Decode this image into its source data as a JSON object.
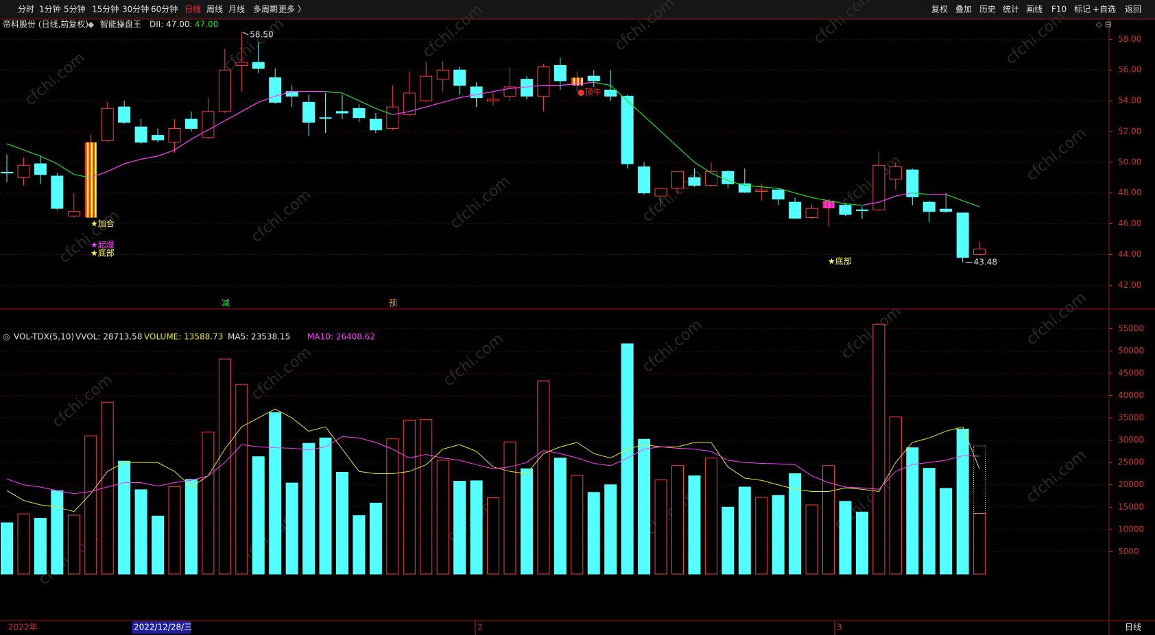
{
  "toolbar": {
    "left": [
      "分时",
      "1分钟",
      "5分钟",
      "15分钟",
      "30分钟",
      "60分钟",
      "日线",
      "周线",
      "月线",
      "多周期",
      "更多 〉"
    ],
    "right": [
      "复权",
      "叠加",
      "历史",
      "统计",
      "画线",
      "F10",
      "标记",
      "+自选",
      "返回"
    ]
  },
  "info": {
    "stock": "帝科股份 (日线,前复权)",
    "indicator": "智能操盘王",
    "dii": "DII: 47.00",
    "value": ": 47.00"
  },
  "volume_header": {
    "name": "VOL-TDX(5,10)",
    "vvol": "VVOL: 28713.58",
    "volume": "VOLUME: 13588.73",
    "ma5": "MA5: 23538.15",
    "ma10": "MA10: 26408.62"
  },
  "date_axis": {
    "labels": [
      "2022年",
      "2022/12/28/三",
      "2",
      "3"
    ],
    "period": "日线"
  },
  "watermark": "cfchi.com",
  "chart_data": [
    {
      "type": "candlestick",
      "up_color": "#ff3c3c",
      "down_color": "#54ffff",
      "open": [
        49.35,
        49.0,
        49.9,
        49.1,
        46.5,
        46.4,
        51.4,
        53.6,
        52.3,
        51.75,
        51.3,
        52.8,
        51.6,
        53.3,
        56.3,
        56.5,
        55.5,
        54.6,
        53.9,
        52.9,
        53.3,
        53.5,
        52.8,
        52.2,
        53.1,
        54.0,
        55.4,
        56.0,
        54.9,
        54.0,
        54.3,
        55.4,
        54.3,
        56.3,
        55.0,
        55.6,
        54.7,
        54.3,
        49.7,
        47.8,
        48.3,
        49.0,
        48.5,
        49.4,
        48.6,
        48.1,
        48.2,
        47.4,
        46.4,
        47.0,
        47.2,
        46.9,
        46.9,
        48.9,
        49.5,
        47.4,
        46.95,
        46.7,
        44.0
      ],
      "high": [
        50.5,
        50.3,
        50.4,
        49.3,
        48.0,
        51.8,
        53.9,
        54.0,
        52.8,
        52.2,
        52.8,
        53.3,
        54.2,
        57.4,
        58.5,
        57.8,
        56.1,
        55.0,
        54.4,
        54.5,
        54.4,
        53.8,
        53.2,
        55.0,
        55.9,
        56.5,
        56.6,
        56.2,
        55.2,
        54.5,
        56.2,
        55.6,
        56.4,
        56.8,
        55.9,
        56.0,
        56.0,
        54.4,
        50.0,
        48.3,
        49.4,
        49.6,
        50.0,
        49.5,
        49.6,
        48.6,
        48.3,
        47.7,
        47.3,
        47.6,
        47.3,
        47.1,
        50.7,
        50.0,
        49.6,
        47.5,
        48.0,
        46.7,
        44.8
      ],
      "low": [
        48.7,
        48.5,
        48.6,
        46.9,
        46.4,
        46.4,
        51.3,
        52.5,
        51.2,
        51.3,
        50.6,
        52.0,
        51.5,
        53.2,
        54.6,
        55.8,
        53.8,
        53.6,
        51.7,
        51.9,
        52.8,
        52.6,
        51.9,
        52.1,
        53.0,
        53.9,
        54.6,
        54.4,
        53.6,
        53.7,
        54.0,
        54.1,
        53.3,
        54.7,
        54.6,
        54.9,
        54.0,
        49.6,
        47.9,
        47.1,
        48.0,
        48.4,
        48.4,
        48.3,
        48.0,
        47.5,
        47.2,
        46.3,
        46.3,
        45.8,
        46.5,
        46.3,
        46.8,
        48.2,
        47.2,
        46.1,
        46.7,
        43.48,
        43.9
      ],
      "close": [
        49.3,
        49.8,
        49.2,
        47.0,
        46.8,
        51.3,
        53.5,
        52.6,
        51.3,
        51.45,
        52.2,
        52.2,
        53.3,
        56.0,
        56.5,
        56.1,
        53.9,
        54.3,
        52.6,
        52.85,
        53.2,
        52.9,
        52.1,
        53.6,
        54.5,
        55.6,
        56.0,
        55.0,
        54.2,
        54.1,
        54.9,
        54.3,
        56.2,
        55.3,
        55.5,
        55.3,
        54.3,
        49.9,
        48.0,
        48.3,
        49.4,
        48.5,
        49.4,
        48.6,
        48.05,
        48.2,
        47.6,
        46.35,
        47.0,
        47.5,
        46.6,
        46.85,
        49.8,
        49.7,
        47.75,
        46.8,
        46.8,
        43.8,
        44.35
      ],
      "ma": {
        "rise_color": "#ff40ff",
        "fall_color": "#20e020",
        "values": [
          51.2,
          50.8,
          50.4,
          49.9,
          49.2,
          49.0,
          49.4,
          49.9,
          50.2,
          50.4,
          50.8,
          51.5,
          52.1,
          52.7,
          53.3,
          53.9,
          54.3,
          54.6,
          54.6,
          54.6,
          54.5,
          54.0,
          53.5,
          53.1,
          53.3,
          53.6,
          53.9,
          54.2,
          54.4,
          54.6,
          54.8,
          54.9,
          55.0,
          55.0,
          55.1,
          55.2,
          55.0,
          54.0,
          53.0,
          52.0,
          51.0,
          50.0,
          49.3,
          48.8,
          48.5,
          48.4,
          48.3,
          48.0,
          47.7,
          47.5,
          47.3,
          47.2,
          47.4,
          47.8,
          48.0,
          47.9,
          47.9,
          47.5,
          47.1
        ]
      },
      "highlights": [
        {
          "index": 5,
          "colors": [
            "#ff2828",
            "#ffff40"
          ]
        },
        {
          "index": 34,
          "colors": [
            "#ff2828",
            "#ffff40"
          ]
        },
        {
          "index": 49,
          "colors": [
            "#ff2060",
            "#ff40ff"
          ]
        }
      ],
      "annotations": [
        {
          "text": "★加合",
          "color": "#ffff40"
        },
        {
          "text": "★起爆",
          "color": "#ff40ff"
        },
        {
          "text": "★底部",
          "color": "#ffff40"
        },
        {
          "text": "●顶牛",
          "color": "#ff3030"
        },
        {
          "text": "★底部",
          "color": "#ffff40"
        },
        {
          "text": "减",
          "color": "#20e020"
        },
        {
          "text": "预",
          "color": "#ff8020"
        }
      ],
      "high_label": {
        "value": 58.5,
        "label": "58.50"
      },
      "low_label": {
        "value": 43.48,
        "label": "43.48"
      },
      "ylim": [
        40.5,
        58.55
      ],
      "yticks": [
        {
          "value": 42,
          "label": "42.00"
        },
        {
          "value": 44,
          "label": "44.00"
        },
        {
          "value": 46,
          "label": "46.00"
        },
        {
          "value": 48,
          "label": "48.00"
        },
        {
          "value": 50,
          "label": "50.00"
        },
        {
          "value": 52,
          "label": "52.00"
        },
        {
          "value": 54,
          "label": "54.00"
        },
        {
          "value": 56,
          "label": "56.00"
        },
        {
          "value": 58,
          "label": "58.00"
        }
      ],
      "grid": true
    },
    {
      "type": "volume",
      "values": [
        11500,
        13500,
        12500,
        18700,
        13200,
        31000,
        38500,
        25300,
        18900,
        13000,
        19600,
        21200,
        31800,
        48200,
        42500,
        26300,
        36200,
        20400,
        29300,
        30500,
        22800,
        13100,
        15900,
        30300,
        34500,
        34600,
        25500,
        20800,
        20900,
        17100,
        29600,
        23600,
        43300,
        26000,
        22100,
        18300,
        20000,
        51600,
        30200,
        21100,
        24300,
        22000,
        26000,
        15000,
        19500,
        17200,
        17600,
        22500,
        15500,
        24300,
        16300,
        13900,
        56000,
        35200,
        28300,
        23700,
        19200,
        32500,
        13588.73
      ],
      "estimated_volume": 28713.58,
      "estimate_color": "#e0e040",
      "ma_lines": [
        {
          "color": "#e8e820",
          "values": [
            18700,
            16500,
            15500,
            15000,
            14000,
            18000,
            23000,
            25000,
            25000,
            25000,
            23000,
            19500,
            22000,
            28000,
            33000,
            35000,
            37000,
            35000,
            32000,
            33000,
            28000,
            23000,
            22500,
            22500,
            23000,
            24500,
            28000,
            29000,
            27500,
            24000,
            23000,
            22500,
            27000,
            28500,
            29500,
            27000,
            26000,
            28000,
            29000,
            28500,
            28500,
            29500,
            29500,
            24000,
            21500,
            21000,
            20000,
            19000,
            18500,
            18500,
            19300,
            19000,
            18500,
            25000,
            29500,
            30500,
            32000,
            33000,
            23538.15
          ]
        },
        {
          "color": "#ff40ff",
          "values": [
            21300,
            20000,
            19500,
            18700,
            18000,
            18500,
            19500,
            20500,
            20500,
            19700,
            20500,
            21000,
            22000,
            25000,
            29000,
            28500,
            28300,
            28200,
            27800,
            28500,
            30800,
            30500,
            29500,
            28000,
            26000,
            26800,
            26000,
            25500,
            24500,
            23600,
            24000,
            25000,
            27700,
            27000,
            26000,
            24800,
            24300,
            26000,
            28000,
            28500,
            28200,
            28000,
            27500,
            25500,
            25000,
            24800,
            24700,
            24500,
            22000,
            20500,
            19500,
            19300,
            19000,
            23000,
            24500,
            25000,
            25500,
            26500,
            26408.62
          ]
        }
      ],
      "ylim": [
        0,
        56500
      ],
      "yticks": [
        5000,
        10000,
        15000,
        20000,
        25000,
        30000,
        35000,
        40000,
        45000,
        50000,
        55000
      ],
      "grid": true
    }
  ]
}
